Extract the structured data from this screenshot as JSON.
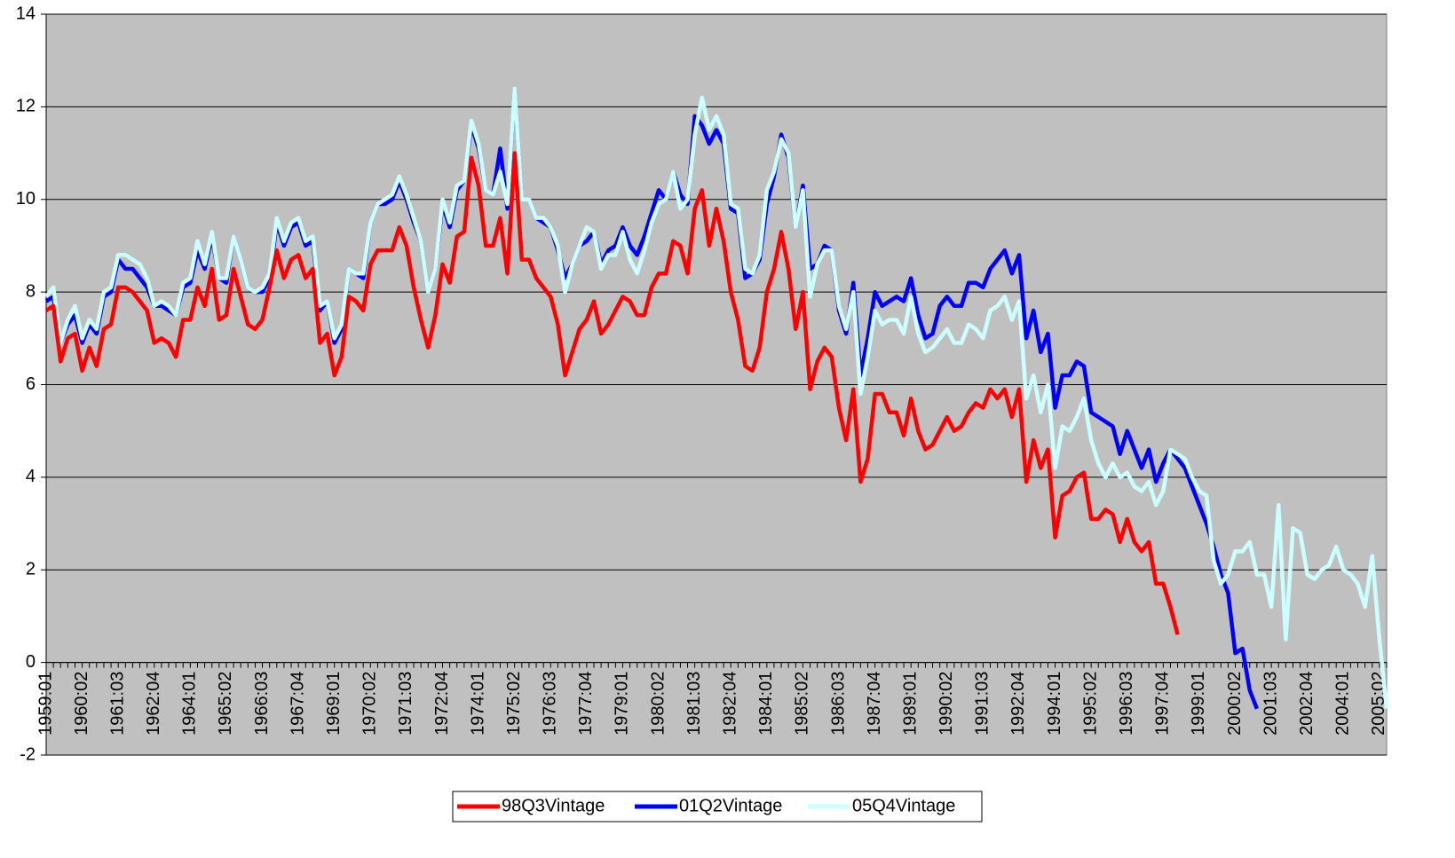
{
  "chart_data": {
    "type": "line",
    "categories": [
      "1959:01",
      null,
      null,
      null,
      null,
      "1960:02",
      null,
      null,
      null,
      null,
      "1961:03",
      null,
      null,
      null,
      null,
      "1962:04",
      null,
      null,
      null,
      null,
      "1964:01",
      null,
      null,
      null,
      null,
      "1965:02",
      null,
      null,
      null,
      null,
      "1966:03",
      null,
      null,
      null,
      null,
      "1967:04",
      null,
      null,
      null,
      null,
      "1969:01",
      null,
      null,
      null,
      null,
      "1970:02",
      null,
      null,
      null,
      null,
      "1971:03",
      null,
      null,
      null,
      null,
      "1972:04",
      null,
      null,
      null,
      null,
      "1974:01",
      null,
      null,
      null,
      null,
      "1975:02",
      null,
      null,
      null,
      null,
      "1976:03",
      null,
      null,
      null,
      null,
      "1977:04",
      null,
      null,
      null,
      null,
      "1979:01",
      null,
      null,
      null,
      null,
      "1980:02",
      null,
      null,
      null,
      null,
      "1981:03",
      null,
      null,
      null,
      null,
      "1982:04",
      null,
      null,
      null,
      null,
      "1984:01",
      null,
      null,
      null,
      null,
      "1985:02",
      null,
      null,
      null,
      null,
      "1986:03",
      null,
      null,
      null,
      null,
      "1987:04",
      null,
      null,
      null,
      null,
      "1989:01",
      null,
      null,
      null,
      null,
      "1990:02",
      null,
      null,
      null,
      null,
      "1991:03",
      null,
      null,
      null,
      null,
      "1992:04",
      null,
      null,
      null,
      null,
      "1994:01",
      null,
      null,
      null,
      null,
      "1995:02",
      null,
      null,
      null,
      null,
      "1996:03",
      null,
      null,
      null,
      null,
      "1997:04",
      null,
      null,
      null,
      null,
      "1999:01",
      null,
      null,
      null,
      null,
      "2000:02",
      null,
      null,
      null,
      null,
      "2001:03",
      null,
      null,
      null,
      null,
      "2002:04",
      null,
      null,
      null,
      null,
      "2004:01",
      null,
      null,
      null,
      null,
      "2005:02",
      null
    ],
    "series": [
      {
        "name": "98Q3Vintage",
        "color": "#ff0000",
        "values": [
          7.6,
          7.7,
          6.5,
          7.0,
          7.1,
          6.3,
          6.8,
          6.4,
          7.2,
          7.3,
          8.1,
          8.1,
          8.0,
          7.8,
          7.6,
          6.9,
          7.0,
          6.9,
          6.6,
          7.4,
          7.4,
          8.1,
          7.7,
          8.5,
          7.4,
          7.5,
          8.5,
          7.9,
          7.3,
          7.2,
          7.4,
          8.1,
          8.9,
          8.3,
          8.7,
          8.8,
          8.3,
          8.5,
          6.9,
          7.1,
          6.2,
          6.6,
          7.9,
          7.8,
          7.6,
          8.6,
          8.9,
          8.9,
          8.9,
          9.4,
          9.0,
          8.1,
          7.4,
          6.8,
          7.5,
          8.6,
          8.2,
          9.2,
          9.3,
          10.9,
          10.3,
          9.0,
          9.0,
          9.6,
          8.4,
          11.0,
          8.7,
          8.7,
          8.3,
          8.1,
          7.9,
          7.3,
          6.2,
          6.7,
          7.2,
          7.4,
          7.8,
          7.1,
          7.3,
          7.6,
          7.9,
          7.8,
          7.5,
          7.5,
          8.1,
          8.4,
          8.4,
          9.1,
          9.0,
          8.4,
          9.8,
          10.2,
          9.0,
          9.8,
          9.1,
          8.0,
          7.4,
          6.4,
          6.3,
          6.8,
          8.0,
          8.5,
          9.3,
          8.5,
          7.2,
          8.0,
          5.9,
          6.5,
          6.8,
          6.6,
          5.5,
          4.8,
          5.9,
          3.9,
          4.4,
          5.8,
          5.8,
          5.4,
          5.4,
          4.9,
          5.7,
          5.0,
          4.6,
          4.7,
          5.0,
          5.3,
          5.0,
          5.1,
          5.4,
          5.6,
          5.5,
          5.9,
          5.7,
          5.9,
          5.3,
          5.9,
          3.9,
          4.8,
          4.2,
          4.6,
          2.7,
          3.6,
          3.7,
          4.0,
          4.1,
          3.1,
          3.1,
          3.3,
          3.2,
          2.6,
          3.1,
          2.6,
          2.4,
          2.6,
          1.7,
          1.7,
          1.2,
          0.6,
          null,
          null,
          null,
          null,
          null,
          null,
          null,
          null,
          null,
          null,
          null,
          null,
          null,
          null,
          null,
          null,
          null,
          null,
          null,
          null,
          null,
          null,
          null,
          null,
          null,
          null,
          null,
          null,
          null
        ]
      },
      {
        "name": "01Q2Vintage",
        "color": "#0000ff",
        "values": [
          7.8,
          7.9,
          6.9,
          7.3,
          7.5,
          6.9,
          7.3,
          7.1,
          7.9,
          8.0,
          8.7,
          8.5,
          8.5,
          8.3,
          8.1,
          7.7,
          7.7,
          7.6,
          7.5,
          8.1,
          8.2,
          8.9,
          8.5,
          9.2,
          8.3,
          8.2,
          9.2,
          8.7,
          8.1,
          8.0,
          8.0,
          8.3,
          9.5,
          9.0,
          9.4,
          9.5,
          9.0,
          9.1,
          7.6,
          7.8,
          6.9,
          7.2,
          8.5,
          8.4,
          8.3,
          9.5,
          9.9,
          9.9,
          10.0,
          10.4,
          10.0,
          9.5,
          9.1,
          8.0,
          8.5,
          9.9,
          9.4,
          10.2,
          10.4,
          11.6,
          11.1,
          10.2,
          10.1,
          11.1,
          9.8,
          12.4,
          10.0,
          10.0,
          9.6,
          9.5,
          9.4,
          8.9,
          8.3,
          8.6,
          9.0,
          9.1,
          9.3,
          8.6,
          8.9,
          9.0,
          9.4,
          9.0,
          8.8,
          9.2,
          9.7,
          10.2,
          10.0,
          10.6,
          10.1,
          9.9,
          11.8,
          11.6,
          11.2,
          11.5,
          11.2,
          9.8,
          9.7,
          8.3,
          8.4,
          8.7,
          9.9,
          10.5,
          11.4,
          10.9,
          9.4,
          10.3,
          8.5,
          8.6,
          9.0,
          8.9,
          7.6,
          7.1,
          8.2,
          6.2,
          7.0,
          8.0,
          7.7,
          7.8,
          7.9,
          7.8,
          8.3,
          7.5,
          7.0,
          7.1,
          7.7,
          7.9,
          7.7,
          7.7,
          8.2,
          8.2,
          8.1,
          8.5,
          8.7,
          8.9,
          8.4,
          8.8,
          7.0,
          7.6,
          6.7,
          7.1,
          5.5,
          6.2,
          6.2,
          6.5,
          6.4,
          5.4,
          5.3,
          5.2,
          5.1,
          4.5,
          5.0,
          4.6,
          4.2,
          4.6,
          3.9,
          4.3,
          4.6,
          4.4,
          4.2,
          3.8,
          3.4,
          3.0,
          2.5,
          1.9,
          1.5,
          0.2,
          0.3,
          -0.6,
          -1.0,
          null,
          null,
          null,
          null,
          null,
          null,
          null,
          null,
          null,
          null,
          null,
          null,
          null,
          null,
          null,
          null,
          null,
          null
        ]
      },
      {
        "name": "05Q4Vintage",
        "color": "#ccffff",
        "values": [
          7.9,
          8.1,
          6.9,
          7.4,
          7.7,
          7.0,
          7.4,
          7.2,
          8.0,
          8.1,
          8.8,
          8.8,
          8.7,
          8.6,
          8.3,
          7.7,
          7.8,
          7.7,
          7.5,
          8.2,
          8.3,
          9.1,
          8.6,
          9.3,
          8.3,
          8.3,
          9.2,
          8.7,
          8.1,
          8.0,
          8.1,
          8.4,
          9.6,
          9.1,
          9.5,
          9.6,
          9.1,
          9.2,
          7.7,
          7.8,
          7.0,
          7.3,
          8.5,
          8.4,
          8.4,
          9.5,
          9.9,
          10.0,
          10.1,
          10.5,
          10.1,
          9.6,
          9.1,
          8.0,
          8.5,
          10.0,
          9.5,
          10.3,
          10.4,
          11.7,
          11.2,
          10.2,
          10.1,
          10.6,
          9.9,
          12.4,
          10.0,
          10.0,
          9.6,
          9.6,
          9.4,
          9.0,
          8.0,
          8.6,
          9.0,
          9.4,
          9.3,
          8.5,
          8.8,
          8.8,
          9.3,
          8.7,
          8.4,
          8.9,
          9.5,
          9.9,
          10.0,
          10.6,
          9.8,
          10.0,
          11.4,
          12.2,
          11.5,
          11.8,
          11.4,
          9.9,
          9.8,
          8.5,
          8.4,
          8.8,
          10.2,
          10.6,
          11.3,
          11.0,
          9.4,
          10.2,
          7.9,
          8.6,
          8.9,
          8.9,
          7.7,
          7.2,
          8.0,
          5.8,
          6.6,
          7.6,
          7.3,
          7.4,
          7.4,
          7.1,
          7.9,
          7.1,
          6.7,
          6.8,
          7.0,
          7.2,
          6.9,
          6.9,
          7.3,
          7.2,
          7.0,
          7.6,
          7.7,
          7.9,
          7.4,
          7.8,
          5.7,
          6.2,
          5.4,
          6.0,
          4.2,
          5.1,
          5.0,
          5.3,
          5.7,
          4.8,
          4.3,
          4.0,
          4.3,
          4.0,
          4.1,
          3.8,
          3.7,
          3.9,
          3.4,
          3.7,
          4.6,
          4.5,
          4.4,
          4.0,
          3.7,
          3.6,
          2.2,
          1.7,
          1.9,
          2.4,
          2.4,
          2.6,
          1.9,
          1.9,
          1.2,
          3.4,
          0.5,
          2.9,
          2.8,
          1.9,
          1.8,
          2.0,
          2.1,
          2.5,
          2.0,
          1.9,
          1.7,
          1.2,
          2.3,
          0.5,
          -1.0
        ]
      }
    ],
    "ylim": [
      -2,
      14
    ],
    "yticks": [
      -2,
      0,
      2,
      4,
      6,
      8,
      10,
      12,
      14
    ],
    "grid": true
  }
}
